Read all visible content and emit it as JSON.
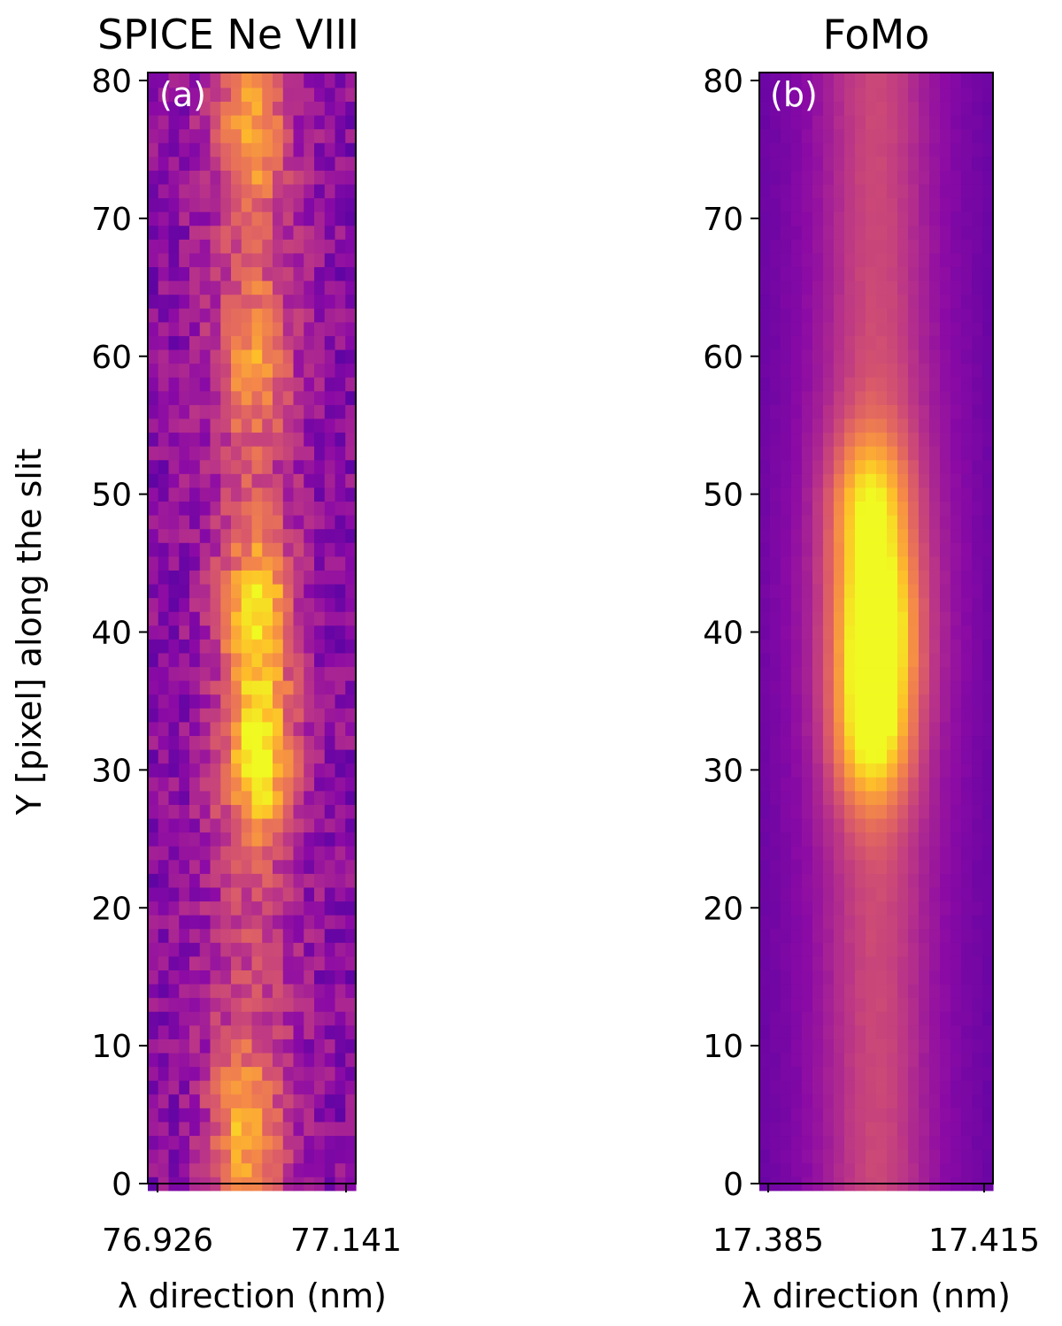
{
  "chart_data": [
    {
      "type": "heatmap",
      "title": "SPICE Ne VIII",
      "panel_label": "(a)",
      "xlabel": "λ direction (nm)",
      "ylabel": "Y [pixel] along the slit",
      "x_ticks": [
        "76.926",
        "77.141"
      ],
      "y_ticks": [
        0,
        10,
        20,
        30,
        40,
        50,
        60,
        70,
        80
      ],
      "ylim": [
        0,
        80
      ],
      "grid": false,
      "colormap": "plasma",
      "colormap_colors": [
        "#0d0887",
        "#5302a3",
        "#8b0aa5",
        "#b83289",
        "#db5c68",
        "#f48849",
        "#febd2a",
        "#f0f921"
      ],
      "columns": 20,
      "rows": 81,
      "bright_features": [
        {
          "y_center": 31,
          "x_fraction": 0.54,
          "relative_intensity": 1.0
        },
        {
          "y_center": 41.5,
          "x_fraction": 0.54,
          "relative_intensity": 0.85
        },
        {
          "y_center": 4,
          "x_fraction": 0.46,
          "relative_intensity": 0.6
        },
        {
          "y_center": 76,
          "x_fraction": 0.5,
          "relative_intensity": 0.55
        },
        {
          "y_center": 60,
          "x_fraction": 0.52,
          "relative_intensity": 0.5
        }
      ]
    },
    {
      "type": "heatmap",
      "title": "FoMo",
      "panel_label": "(b)",
      "xlabel": "λ direction (nm)",
      "ylabel": "",
      "x_ticks": [
        "17.385",
        "17.415"
      ],
      "y_ticks": [
        0,
        10,
        20,
        30,
        40,
        50,
        60,
        70,
        80
      ],
      "ylim": [
        0,
        80
      ],
      "grid": false,
      "colormap": "plasma",
      "colormap_colors": [
        "#0d0887",
        "#5302a3",
        "#8b0aa5",
        "#b83289",
        "#db5c68",
        "#f48849",
        "#febd2a",
        "#f0f921"
      ],
      "columns": 22,
      "rows": 81,
      "bright_features": [
        {
          "y_center": 40.5,
          "x_fraction": 0.5,
          "relative_intensity": 1.0
        },
        {
          "y_center": 33,
          "x_fraction": 0.48,
          "relative_intensity": 0.92
        },
        {
          "y_center": 49,
          "x_fraction": 0.47,
          "relative_intensity": 0.75
        }
      ]
    }
  ]
}
